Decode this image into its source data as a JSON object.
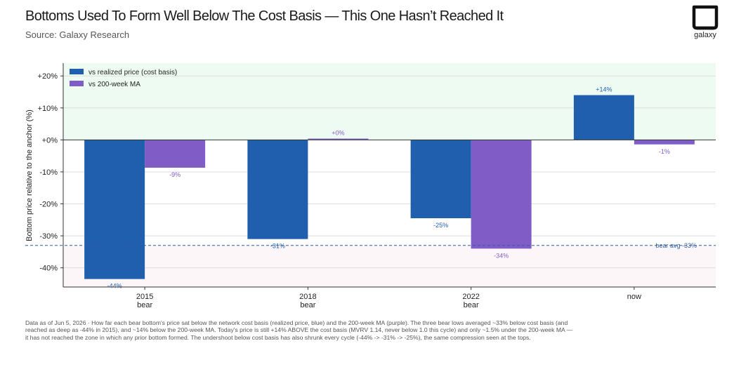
{
  "header": {
    "title": "Bottoms Used To Form Well Below The Cost Basis — This One Hasn’t Reached It",
    "subtitle": "Source: Galaxy Research",
    "logo_text": "galaxy"
  },
  "colors": {
    "realized": "#1f5fae",
    "ma200": "#7f5cc6",
    "positive_zone": "#eefbf3",
    "negative_zone": "#fdf6f8",
    "avg_line": "#2f5fa5",
    "axis": "#333333"
  },
  "chart_data": {
    "type": "bar",
    "categories": [
      "2015\nbear",
      "2018\nbear",
      "2022\nbear",
      "now"
    ],
    "series": [
      {
        "name": "vs realized price (cost basis)",
        "values": [
          -43.5,
          -31,
          -24.5,
          14
        ],
        "labels": [
          "-44%",
          "-31%",
          "-25%",
          "+14%"
        ]
      },
      {
        "name": "vs 200-week MA",
        "values": [
          -8.7,
          0.4,
          -34,
          -1.4
        ],
        "labels": [
          "-9%",
          "+0%",
          "-34%",
          "-1%"
        ]
      }
    ],
    "ylabel": "Bottom price relative to the anchor (%)",
    "ylim": [
      -46,
      24
    ],
    "yticks": [
      20,
      10,
      0,
      -10,
      -20,
      -30,
      -40
    ],
    "ytick_labels": [
      "+20%",
      "+10%",
      "+0%",
      "-10%",
      "-20%",
      "-30%",
      "-40%"
    ],
    "grid": true,
    "legend": "top-left",
    "reference_line": {
      "value": -33,
      "label": "bear avg -33%"
    }
  },
  "footnote": "Data as of Jun 5, 2026 · How far each bear bottom's price sat below the network cost basis (realized price, blue) and the 200-week MA (purple). The three bear lows averaged ~33% below cost basis (and reached as deep as -44% in 2015), and ~14% below the 200-week MA. Today's price is still +14% ABOVE the cost basis (MVRV 1.14, never below 1.0 this cycle) and only ~1.5% under the 200-week MA — it has not reached the zone in which any prior bottom formed. The undershoot below cost basis has also shrunk every cycle (-44% -> -31% -> -25%), the same compression seen at the tops."
}
